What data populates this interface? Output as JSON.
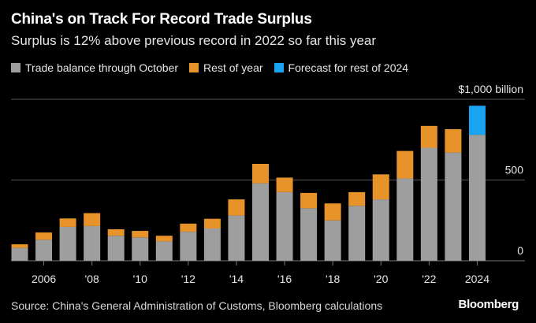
{
  "header": {
    "title": "China's on Track For Record Trade Surplus",
    "subtitle": "Surplus is 12% above previous record in 2022 so far this year"
  },
  "legend": [
    {
      "label": "Trade balance through October",
      "color": "#9e9e9e"
    },
    {
      "label": "Rest of year",
      "color": "#e8922a"
    },
    {
      "label": "Forecast for rest of 2024",
      "color": "#1aa3f0"
    }
  ],
  "footer": {
    "source": "Source: China's General Administration of Customs, Bloomberg calculations",
    "brand": "Bloomberg"
  },
  "chart_data": {
    "type": "bar",
    "stacked": true,
    "title": "China's on Track For Record Trade Surplus",
    "ylabel": "$ billion",
    "ylim": [
      0,
      1000
    ],
    "y_ticks": [
      {
        "value": 0,
        "label": "0"
      },
      {
        "value": 500,
        "label": "500"
      },
      {
        "value": 1000,
        "label": "$1,000 billion"
      }
    ],
    "x_ticks": [
      {
        "year": 2006,
        "label": "2006"
      },
      {
        "year": 2008,
        "label": "'08"
      },
      {
        "year": 2010,
        "label": "'10"
      },
      {
        "year": 2012,
        "label": "'12"
      },
      {
        "year": 2014,
        "label": "'14"
      },
      {
        "year": 2016,
        "label": "'16"
      },
      {
        "year": 2018,
        "label": "'18"
      },
      {
        "year": 2020,
        "label": "'20"
      },
      {
        "year": 2022,
        "label": "'22"
      },
      {
        "year": 2024,
        "label": "2024"
      }
    ],
    "categories": [
      2005,
      2006,
      2007,
      2008,
      2009,
      2010,
      2011,
      2012,
      2013,
      2014,
      2015,
      2016,
      2017,
      2018,
      2019,
      2020,
      2021,
      2022,
      2023,
      2024
    ],
    "series": [
      {
        "name": "Trade balance through October",
        "values": [
          80,
          130,
          210,
          215,
          155,
          145,
          120,
          180,
          200,
          280,
          480,
          425,
          325,
          250,
          340,
          380,
          510,
          700,
          670,
          780
        ]
      },
      {
        "name": "Rest of year",
        "values": [
          22,
          45,
          52,
          80,
          40,
          40,
          35,
          50,
          60,
          100,
          120,
          90,
          95,
          105,
          85,
          155,
          170,
          135,
          145,
          0
        ]
      },
      {
        "name": "Forecast for rest of 2024",
        "values": [
          0,
          0,
          0,
          0,
          0,
          0,
          0,
          0,
          0,
          0,
          0,
          0,
          0,
          0,
          0,
          0,
          0,
          0,
          0,
          180
        ]
      }
    ]
  }
}
